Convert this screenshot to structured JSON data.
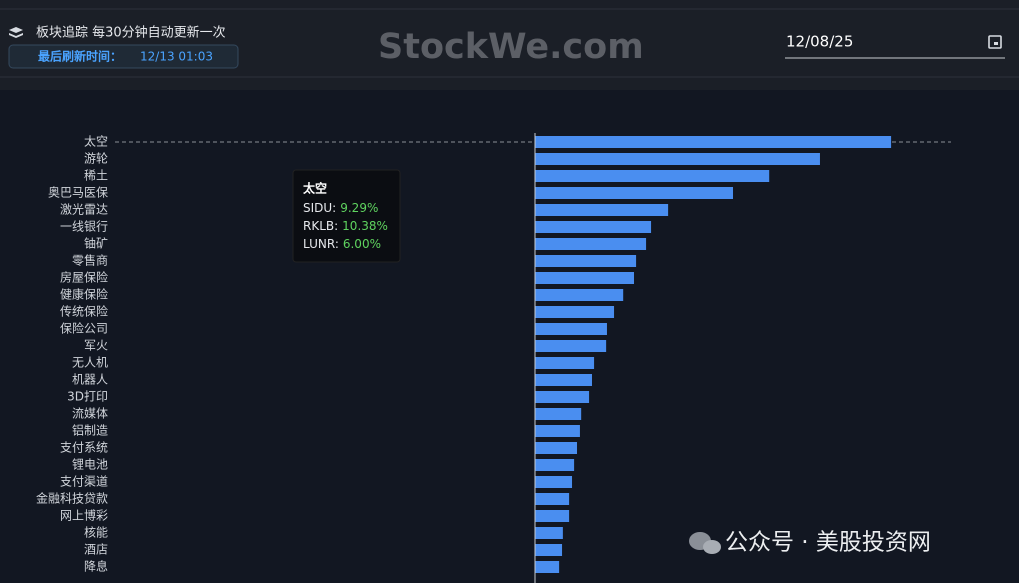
{
  "header": {
    "title": "板块追踪 每30分钟自动更新一次",
    "refresh_label": "最后刷新时间：",
    "refresh_time": "12/13 01:03",
    "watermark": "StockWe.com",
    "date": "12/08/25"
  },
  "chart_data": {
    "type": "bar",
    "orientation": "horizontal",
    "color": "#4a8ef0",
    "categories": [
      "太空",
      "游轮",
      "稀土",
      "奥巴马医保",
      "激光雷达",
      "一线银行",
      "铀矿",
      "零售商",
      "房屋保险",
      "健康保险",
      "传统保险",
      "保险公司",
      "军火",
      "无人机",
      "机器人",
      "3D打印",
      "流媒体",
      "铝制造",
      "支付系统",
      "锂电池",
      "支付渠道",
      "金融科技贷款",
      "网上博彩",
      "核能",
      "酒店",
      "降息"
    ],
    "values": [
      8.56,
      6.85,
      5.63,
      4.76,
      3.2,
      2.79,
      2.67,
      2.43,
      2.38,
      2.12,
      1.9,
      1.73,
      1.71,
      1.42,
      1.37,
      1.3,
      1.11,
      1.08,
      1.01,
      0.94,
      0.89,
      0.82,
      0.82,
      0.67,
      0.65,
      0.58
    ],
    "xlim": [
      0,
      10
    ]
  },
  "tooltip": {
    "title": "太空",
    "items": [
      {
        "name": "SIDU:",
        "value": "9.29%"
      },
      {
        "name": "RKLB:",
        "value": "10.38%"
      },
      {
        "name": "LUNR:",
        "value": "6.00%"
      }
    ]
  },
  "footer": {
    "watermark": "公众号 · 美股投资网"
  }
}
